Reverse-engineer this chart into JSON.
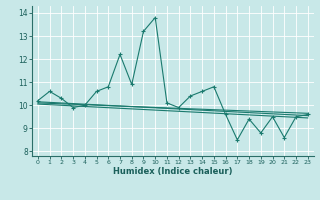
{
  "xlabel": "Humidex (Indice chaleur)",
  "background_color": "#c8e8e8",
  "grid_color": "#ffffff",
  "line_color": "#1a7a6e",
  "xlim": [
    -0.5,
    23.5
  ],
  "ylim": [
    7.8,
    14.3
  ],
  "yticks": [
    8,
    9,
    10,
    11,
    12,
    13,
    14
  ],
  "xticks": [
    0,
    1,
    2,
    3,
    4,
    5,
    6,
    7,
    8,
    9,
    10,
    11,
    12,
    13,
    14,
    15,
    16,
    17,
    18,
    19,
    20,
    21,
    22,
    23
  ],
  "main_series": [
    10.2,
    10.6,
    10.3,
    9.9,
    10.0,
    10.6,
    10.8,
    12.2,
    10.9,
    13.2,
    13.8,
    10.1,
    9.9,
    10.4,
    10.6,
    10.8,
    9.6,
    8.5,
    9.4,
    8.8,
    9.5,
    8.6,
    9.5,
    9.6
  ],
  "trend_line": [
    [
      0,
      10.15
    ],
    [
      23,
      9.55
    ]
  ],
  "smooth_line1": [
    [
      0,
      10.1
    ],
    [
      23,
      9.65
    ]
  ],
  "smooth_line2": [
    [
      0,
      10.05
    ],
    [
      23,
      9.45
    ]
  ]
}
